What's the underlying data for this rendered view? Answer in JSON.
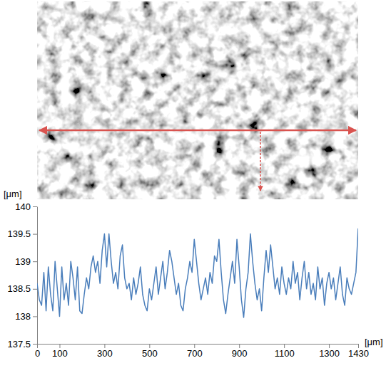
{
  "chart_data": {
    "type": "line",
    "y_label": "[μm]",
    "x_label": "[μm]",
    "color": "#4a7ebb",
    "grid": false,
    "xlim": [
      0,
      1430
    ],
    "xticks": [
      0,
      100,
      300,
      500,
      700,
      900,
      1100,
      1300,
      1430
    ],
    "ylim": [
      137.5,
      140
    ],
    "yticks": [
      137.5,
      138,
      138.5,
      139,
      139.5,
      140
    ],
    "x": [
      0,
      10,
      20,
      30,
      40,
      50,
      60,
      70,
      80,
      90,
      100,
      110,
      120,
      130,
      140,
      150,
      160,
      170,
      180,
      190,
      200,
      210,
      220,
      230,
      240,
      250,
      260,
      270,
      280,
      290,
      300,
      310,
      320,
      330,
      340,
      350,
      360,
      370,
      380,
      390,
      400,
      410,
      420,
      430,
      440,
      450,
      460,
      470,
      480,
      490,
      500,
      510,
      520,
      530,
      540,
      550,
      560,
      570,
      580,
      590,
      600,
      610,
      620,
      630,
      640,
      650,
      660,
      670,
      680,
      690,
      700,
      710,
      720,
      730,
      740,
      750,
      760,
      770,
      780,
      790,
      800,
      810,
      820,
      830,
      840,
      850,
      860,
      870,
      880,
      890,
      900,
      910,
      920,
      930,
      940,
      950,
      960,
      970,
      980,
      990,
      1000,
      1010,
      1020,
      1030,
      1040,
      1050,
      1060,
      1070,
      1080,
      1090,
      1100,
      1110,
      1120,
      1130,
      1140,
      1150,
      1160,
      1170,
      1180,
      1190,
      1200,
      1210,
      1220,
      1230,
      1240,
      1250,
      1260,
      1270,
      1280,
      1290,
      1300,
      1310,
      1320,
      1330,
      1340,
      1350,
      1360,
      1370,
      1380,
      1390,
      1400,
      1410,
      1420,
      1430
    ],
    "values": [
      138.6,
      138.3,
      138.2,
      138.8,
      138.1,
      138.9,
      138.4,
      138.1,
      139.0,
      138.5,
      138.0,
      138.9,
      138.3,
      138.6,
      138.2,
      139.0,
      138.7,
      138.3,
      138.9,
      138.1,
      138.05,
      138.4,
      138.7,
      138.5,
      138.9,
      139.1,
      138.8,
      139.0,
      138.6,
      139.2,
      139.5,
      138.9,
      139.5,
      139.0,
      138.6,
      138.8,
      138.5,
      139.1,
      139.3,
      138.7,
      138.5,
      138.6,
      138.3,
      138.7,
      138.4,
      138.6,
      138.9,
      138.4,
      138.2,
      138.1,
      138.5,
      138.3,
      138.6,
      138.9,
      138.4,
      138.7,
      139.0,
      138.5,
      138.8,
      139.2,
      139.0,
      138.7,
      138.4,
      138.6,
      138.2,
      138.1,
      138.5,
      138.7,
      139.0,
      138.8,
      139.4,
      139.0,
      138.6,
      138.3,
      138.5,
      138.7,
      138.4,
      138.8,
      138.6,
      139.1,
      139.0,
      139.4,
      138.8,
      138.3,
      138.05,
      138.4,
      138.7,
      139.0,
      138.6,
      139.4,
      138.9,
      138.3,
      137.98,
      138.5,
      138.8,
      139.5,
      139.0,
      138.6,
      138.3,
      138.5,
      138.1,
      138.7,
      139.2,
      138.8,
      139.3,
      138.9,
      138.5,
      138.7,
      138.4,
      138.9,
      138.6,
      138.4,
      138.7,
      138.5,
      139.0,
      138.6,
      138.8,
      138.3,
      138.7,
      139.0,
      138.5,
      138.8,
      138.4,
      138.6,
      138.3,
      138.9,
      138.5,
      138.7,
      138.2,
      138.6,
      138.8,
      138.5,
      138.7,
      138.3,
      138.6,
      138.9,
      138.4,
      138.2,
      138.7,
      138.5,
      138.4,
      138.6,
      138.8,
      139.6
    ]
  }
}
